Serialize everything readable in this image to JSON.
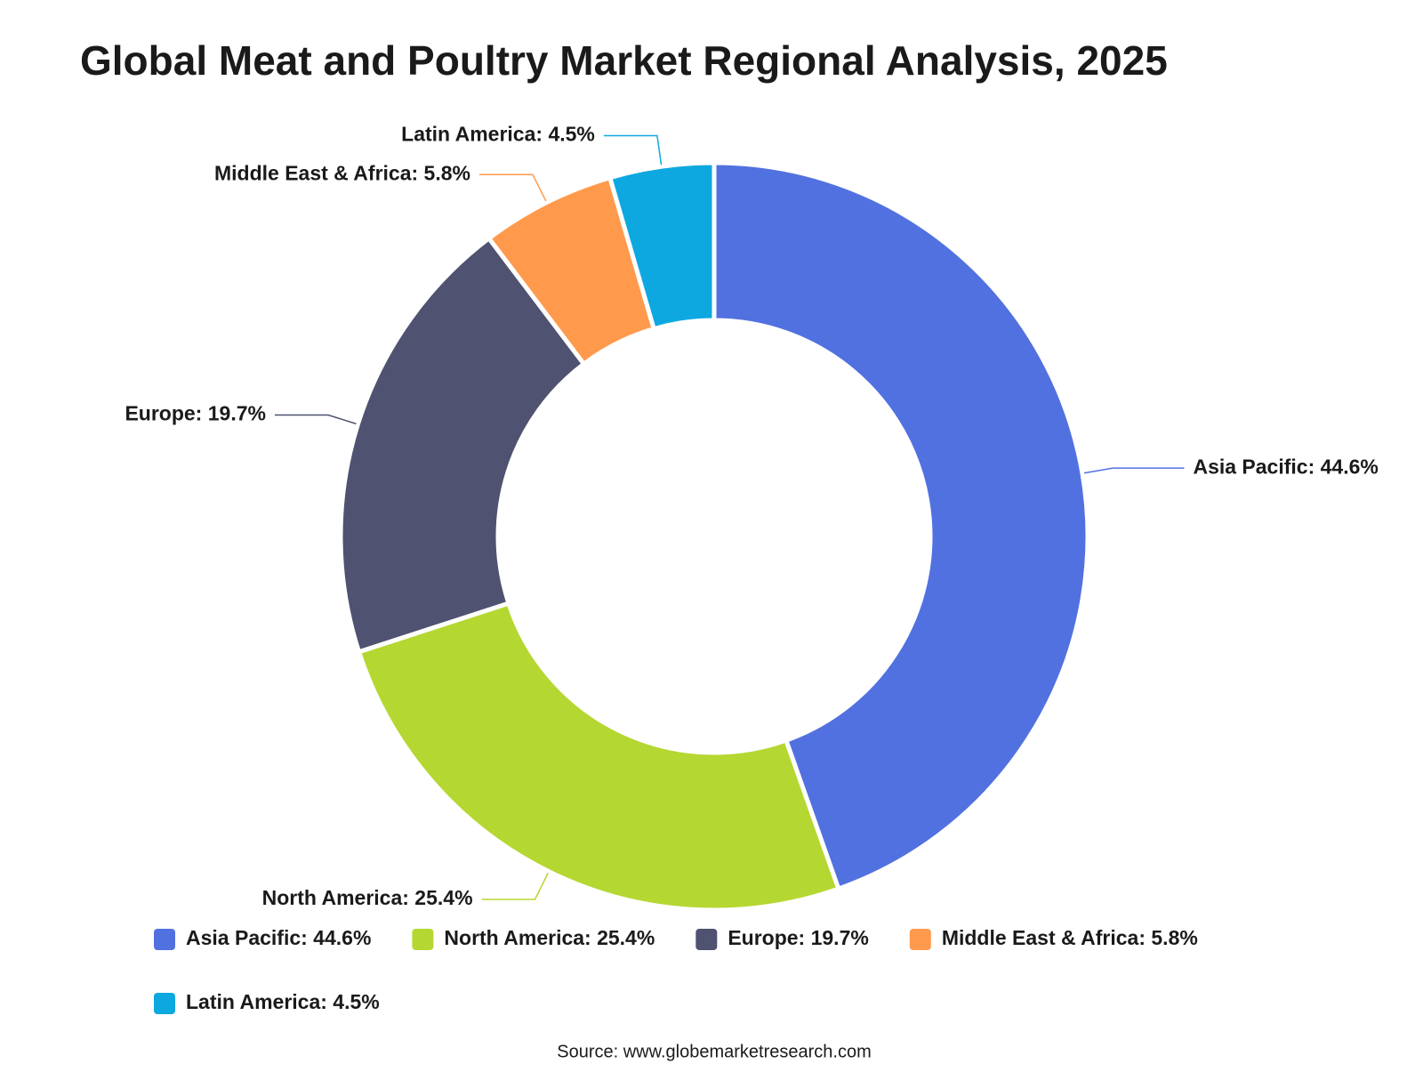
{
  "chart_data": {
    "type": "pie",
    "donut": true,
    "title": "Global Meat and Poultry Market Regional Analysis, 2025",
    "values": [
      44.6,
      25.4,
      19.7,
      5.8,
      4.5
    ],
    "value_labels": [
      "Asia Pacific: 44.6%",
      "North America: 25.4%",
      "Europe: 19.7%",
      "Middle East & Africa: 5.8%",
      "Latin America: 4.5%"
    ],
    "colors": [
      "#5271e0",
      "#b5d732",
      "#4f5270",
      "#ff9a4d",
      "#0ea8e0"
    ],
    "source": "Source: www.globemarketresearch.com"
  }
}
